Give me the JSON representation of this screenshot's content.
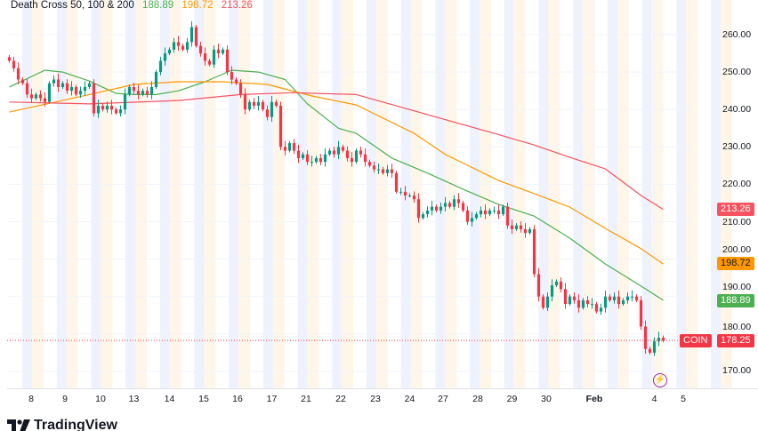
{
  "legend": {
    "title": "Death Cross 50, 100 & 200",
    "sma50": "188.89",
    "sma100": "198.72",
    "sma200": "213.26"
  },
  "colors": {
    "up": "#089981",
    "down": "#f23645",
    "sma50": "#4caf50",
    "sma100": "#ff9800",
    "sma200": "#f7525f",
    "last": "#f23645"
  },
  "badges": {
    "sma200": "213.26",
    "sma100": "198.72",
    "sma50": "188.89",
    "symbol": "COIN",
    "last": "178.25"
  },
  "brand": "TradingView",
  "chart_data": {
    "type": "candlestick",
    "title": "Death Cross 50, 100 & 200",
    "ylim": [
      167,
      265
    ],
    "y_ticks": [
      "260.00",
      "250.00",
      "240.00",
      "230.00",
      "220.00",
      "210.00",
      "200.00",
      "190.00",
      "180.00",
      "170.00"
    ],
    "y_tick_values": [
      260,
      250,
      240,
      230,
      220,
      210,
      200,
      190,
      180,
      170
    ],
    "x_ticks": [
      {
        "label": "8",
        "i": 4.9
      },
      {
        "label": "9",
        "i": 12.5
      },
      {
        "label": "10",
        "i": 20.5
      },
      {
        "label": "13",
        "i": 28
      },
      {
        "label": "14",
        "i": 36
      },
      {
        "label": "15",
        "i": 43.7
      },
      {
        "label": "16",
        "i": 51.3
      },
      {
        "label": "17",
        "i": 59
      },
      {
        "label": "21",
        "i": 66.7
      },
      {
        "label": "22",
        "i": 74.5
      },
      {
        "label": "23",
        "i": 82.3
      },
      {
        "label": "24",
        "i": 90
      },
      {
        "label": "27",
        "i": 97.5
      },
      {
        "label": "28",
        "i": 105.3
      },
      {
        "label": "29",
        "i": 113
      },
      {
        "label": "30",
        "i": 120.7
      },
      {
        "label": "Feb",
        "i": 131.5
      },
      {
        "label": "4",
        "i": 145
      },
      {
        "label": "5",
        "i": 151.5
      }
    ],
    "first_open": 254,
    "closes": [
      253,
      251,
      248,
      247,
      244,
      243,
      244,
      243,
      242,
      247,
      248,
      246,
      247,
      245,
      246,
      244,
      245,
      246,
      247,
      239,
      241,
      240,
      241,
      240,
      239,
      240,
      244,
      246,
      245,
      244,
      245,
      244,
      246,
      250,
      253,
      255,
      256,
      258,
      257,
      256,
      258,
      262,
      257,
      255,
      253,
      252,
      256,
      255,
      256,
      250,
      248,
      247,
      244,
      240,
      242,
      241,
      242,
      240,
      238,
      242,
      241,
      230,
      229,
      231,
      229,
      227,
      228,
      226,
      226,
      227,
      226,
      228,
      229,
      228,
      230,
      229,
      227,
      226,
      229,
      228,
      226,
      225,
      224,
      224,
      223,
      224,
      223,
      218,
      218,
      217,
      217,
      216,
      211,
      212,
      213,
      214,
      213,
      214,
      215,
      214,
      216,
      215,
      213,
      210,
      211,
      212,
      213,
      212,
      213,
      213,
      212,
      214,
      209,
      208,
      209,
      208,
      207,
      208,
      196,
      190,
      187,
      190,
      193,
      194,
      192,
      188,
      190,
      189,
      187,
      189,
      188,
      188,
      186,
      187,
      190,
      189,
      190,
      188,
      189,
      190,
      190,
      189,
      182,
      176,
      175,
      178,
      179,
      178.25
    ],
    "series": [
      {
        "name": "SMA 50",
        "last": 188.89,
        "points": [
          [
            0,
            246
          ],
          [
            8,
            250.5
          ],
          [
            12,
            250
          ],
          [
            18,
            247.6
          ],
          [
            24,
            244.3
          ],
          [
            28,
            244
          ],
          [
            33,
            244
          ],
          [
            38,
            245
          ],
          [
            44,
            247.4
          ],
          [
            50,
            250.5
          ],
          [
            56,
            250
          ],
          [
            62,
            248
          ],
          [
            67,
            241.5
          ],
          [
            74,
            235
          ],
          [
            78,
            233.6
          ],
          [
            86,
            227
          ],
          [
            94,
            223
          ],
          [
            102,
            218.7
          ],
          [
            110,
            214.6
          ],
          [
            118,
            211.5
          ],
          [
            126,
            205.6
          ],
          [
            134,
            198.7
          ],
          [
            142,
            192.8
          ],
          [
            147,
            189
          ]
        ]
      },
      {
        "name": "SMA 100",
        "last": 198.72,
        "points": [
          [
            0,
            239.3
          ],
          [
            18,
            244
          ],
          [
            28,
            246.7
          ],
          [
            38,
            247.4
          ],
          [
            48,
            247.4
          ],
          [
            58,
            246.7
          ],
          [
            68,
            243.6
          ],
          [
            78,
            241.2
          ],
          [
            91,
            233.6
          ],
          [
            98,
            228
          ],
          [
            110,
            221
          ],
          [
            118,
            217.5
          ],
          [
            126,
            213.9
          ],
          [
            134,
            208.2
          ],
          [
            142,
            202.8
          ],
          [
            147,
            198.7
          ]
        ]
      },
      {
        "name": "SMA 200",
        "last": 213.26,
        "points": [
          [
            0,
            242
          ],
          [
            18,
            241.5
          ],
          [
            38,
            242.4
          ],
          [
            52,
            244
          ],
          [
            64,
            244.5
          ],
          [
            78,
            244
          ],
          [
            109,
            233.6
          ],
          [
            118,
            230.5
          ],
          [
            126,
            227.2
          ],
          [
            134,
            224.1
          ],
          [
            142,
            217
          ],
          [
            147,
            213.3
          ]
        ]
      }
    ]
  }
}
